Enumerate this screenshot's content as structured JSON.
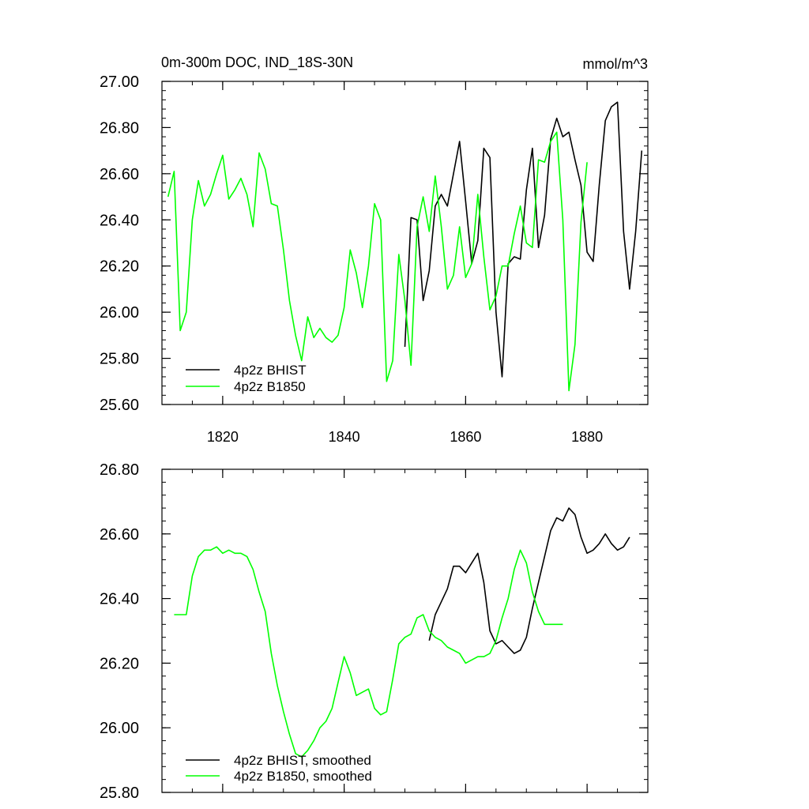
{
  "colors": {
    "bhist": "#000000",
    "b1850": "#00ff00",
    "axis": "#000000",
    "background": "#ffffff"
  },
  "chart_data": [
    {
      "type": "line",
      "title": "0m-300m DOC, IND_18S-30N",
      "units": "mmol/m^3",
      "xlim": [
        1810,
        1890
      ],
      "ylim": [
        25.6,
        27.0
      ],
      "xticks": [
        1820,
        1840,
        1860,
        1880
      ],
      "xtick_labels": [
        "1820",
        "1840",
        "1860",
        "1880"
      ],
      "yticks": [
        25.6,
        25.8,
        26.0,
        26.2,
        26.4,
        26.6,
        26.8,
        27.0
      ],
      "ytick_labels": [
        "25.60",
        "25.80",
        "26.00",
        "26.20",
        "26.40",
        "26.60",
        "26.80",
        "27.00"
      ],
      "legend_position": "bottom-left",
      "series": [
        {
          "name": "4p2z BHIST",
          "color": "#000000",
          "x": [
            1850,
            1851,
            1852,
            1853,
            1854,
            1855,
            1856,
            1857,
            1858,
            1859,
            1860,
            1861,
            1862,
            1863,
            1864,
            1865,
            1866,
            1867,
            1868,
            1869,
            1870,
            1871,
            1872,
            1873,
            1874,
            1875,
            1876,
            1877,
            1878,
            1879,
            1880,
            1881,
            1882,
            1883,
            1884,
            1885,
            1886,
            1887,
            1888,
            1889
          ],
          "y": [
            25.85,
            26.41,
            26.4,
            26.05,
            26.18,
            26.46,
            26.51,
            26.46,
            26.6,
            26.74,
            26.48,
            26.21,
            26.31,
            26.71,
            26.67,
            26.0,
            25.72,
            26.21,
            26.24,
            26.23,
            26.53,
            26.71,
            26.28,
            26.42,
            26.75,
            26.84,
            26.76,
            26.78,
            26.66,
            26.55,
            26.26,
            26.22,
            26.55,
            26.83,
            26.89,
            26.91,
            26.35,
            26.1,
            26.35,
            26.7
          ]
        },
        {
          "name": "4p2z B1850",
          "color": "#00ff00",
          "x": [
            1811,
            1812,
            1813,
            1814,
            1815,
            1816,
            1817,
            1818,
            1819,
            1820,
            1821,
            1822,
            1823,
            1824,
            1825,
            1826,
            1827,
            1828,
            1829,
            1830,
            1831,
            1832,
            1833,
            1834,
            1835,
            1836,
            1837,
            1838,
            1839,
            1840,
            1841,
            1842,
            1843,
            1844,
            1845,
            1846,
            1847,
            1848,
            1849,
            1850,
            1851,
            1852,
            1853,
            1854,
            1855,
            1856,
            1857,
            1858,
            1859,
            1860,
            1861,
            1862,
            1863,
            1864,
            1865,
            1866,
            1867,
            1868,
            1869,
            1870,
            1871,
            1872,
            1873,
            1874,
            1875,
            1876,
            1877,
            1878,
            1879,
            1880
          ],
          "y": [
            26.5,
            26.61,
            25.92,
            26.0,
            26.4,
            26.57,
            26.46,
            26.51,
            26.6,
            26.68,
            26.49,
            26.53,
            26.58,
            26.51,
            26.37,
            26.69,
            26.62,
            26.47,
            26.46,
            26.27,
            26.05,
            25.9,
            25.79,
            25.98,
            25.89,
            25.93,
            25.89,
            25.87,
            25.9,
            26.02,
            26.27,
            26.17,
            26.02,
            26.2,
            26.47,
            26.4,
            25.7,
            25.79,
            26.25,
            26.05,
            25.77,
            26.37,
            26.5,
            26.35,
            26.59,
            26.37,
            26.1,
            26.16,
            26.37,
            26.15,
            26.21,
            26.51,
            26.24,
            26.01,
            26.07,
            26.2,
            26.2,
            26.34,
            26.46,
            26.3,
            26.28,
            26.66,
            26.65,
            26.74,
            26.78,
            26.4,
            25.66,
            25.86,
            26.39,
            26.65
          ]
        }
      ]
    },
    {
      "type": "line",
      "xlim": [
        1810,
        1890
      ],
      "ylim": [
        25.8,
        26.8
      ],
      "xticks": [
        1820,
        1840,
        1860,
        1880
      ],
      "yticks": [
        25.8,
        26.0,
        26.2,
        26.4,
        26.6,
        26.8
      ],
      "ytick_labels": [
        "25.80",
        "26.00",
        "26.20",
        "26.40",
        "26.60",
        "26.80"
      ],
      "legend_position": "bottom-left",
      "series": [
        {
          "name": "4p2z BHIST, smoothed",
          "color": "#000000",
          "x": [
            1854,
            1855,
            1856,
            1857,
            1858,
            1859,
            1860,
            1861,
            1862,
            1863,
            1864,
            1865,
            1866,
            1867,
            1868,
            1869,
            1870,
            1871,
            1872,
            1873,
            1874,
            1875,
            1876,
            1877,
            1878,
            1879,
            1880,
            1881,
            1882,
            1883,
            1884,
            1885,
            1886,
            1887
          ],
          "y": [
            26.27,
            26.35,
            26.39,
            26.43,
            26.5,
            26.5,
            26.48,
            26.51,
            26.54,
            26.45,
            26.3,
            26.26,
            26.27,
            26.25,
            26.23,
            26.24,
            26.28,
            26.37,
            26.45,
            26.53,
            26.61,
            26.65,
            26.64,
            26.68,
            26.66,
            26.59,
            26.54,
            26.55,
            26.57,
            26.6,
            26.57,
            26.55,
            26.56,
            26.59
          ]
        },
        {
          "name": "4p2z B1850, smoothed",
          "color": "#00ff00",
          "x": [
            1812,
            1813,
            1814,
            1815,
            1816,
            1817,
            1818,
            1819,
            1820,
            1821,
            1822,
            1823,
            1824,
            1825,
            1826,
            1827,
            1828,
            1829,
            1830,
            1831,
            1832,
            1833,
            1834,
            1835,
            1836,
            1837,
            1838,
            1839,
            1840,
            1841,
            1842,
            1843,
            1844,
            1845,
            1846,
            1847,
            1848,
            1849,
            1850,
            1851,
            1852,
            1853,
            1854,
            1855,
            1856,
            1857,
            1858,
            1859,
            1860,
            1861,
            1862,
            1863,
            1864,
            1865,
            1866,
            1867,
            1868,
            1869,
            1870,
            1871,
            1872,
            1873,
            1874,
            1875,
            1876
          ],
          "y": [
            26.35,
            26.35,
            26.35,
            26.47,
            26.53,
            26.55,
            26.55,
            26.56,
            26.54,
            26.55,
            26.54,
            26.54,
            26.53,
            26.49,
            26.42,
            26.36,
            26.23,
            26.13,
            26.05,
            25.98,
            25.92,
            25.91,
            25.93,
            25.96,
            26.0,
            26.02,
            26.06,
            26.14,
            26.22,
            26.17,
            26.1,
            26.11,
            26.12,
            26.06,
            26.04,
            26.05,
            26.15,
            26.26,
            26.28,
            26.29,
            26.34,
            26.35,
            26.3,
            26.28,
            26.27,
            26.25,
            26.24,
            26.23,
            26.2,
            26.21,
            26.22,
            26.22,
            26.23,
            26.27,
            26.34,
            26.4,
            26.49,
            26.55,
            26.51,
            26.42,
            26.36,
            26.32,
            26.32,
            26.32,
            26.32
          ]
        }
      ]
    }
  ]
}
